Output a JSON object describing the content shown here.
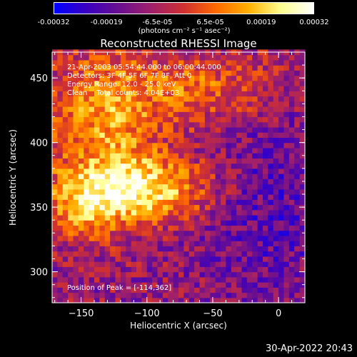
{
  "colorbar": {
    "tick_labels": [
      "-0.00032",
      "-0.00019",
      "-6.5e-05",
      "6.5e-05",
      "0.00019",
      "0.00032"
    ],
    "tick_values": [
      -0.00032,
      -0.00019,
      -6.5e-05,
      6.5e-05,
      0.00019,
      0.00032
    ],
    "range": [
      -0.00032,
      0.00032
    ],
    "unit": "(photons cm⁻² s⁻¹ asec⁻²)",
    "colors": [
      "#0000ff",
      "#3a00c0",
      "#6a0f90",
      "#a0206a",
      "#d03030",
      "#ff6a00",
      "#ffb000",
      "#ffff90",
      "#ffffff"
    ]
  },
  "chart_data": {
    "type": "heatmap",
    "title": "Reconstructed RHESSI Image",
    "xlabel": "Heliocentric X (arcsec)",
    "ylabel": "Heliocentric Y (arcsec)",
    "xlim": [
      -172,
      20
    ],
    "ylim": [
      276,
      470
    ],
    "x_ticks": [
      -150,
      -100,
      -50,
      0
    ],
    "y_ticks": [
      300,
      350,
      400,
      450
    ],
    "tick_labels_x": [
      "−150",
      "−100",
      "−50",
      "0"
    ],
    "tick_labels_y": [
      "300",
      "350",
      "400",
      "450"
    ],
    "peak_position": [
      -114,
      362
    ],
    "pixel_size_arcsec": 4,
    "annotations": {
      "time": "21-Apr-2003 05:54:44.000 to 06:00:44.000",
      "detectors": "Detectors: 3F 4F 5F 6F 7F 8F, Att 0",
      "energy": "Energy Range: 12.0 - 25.0 keV",
      "clean": "Clean    Total counts: 4.04E+03",
      "peak": "Position of Peak = [-114,362]"
    }
  },
  "footer": {
    "datetime": "30-Apr-2022 20:43"
  }
}
